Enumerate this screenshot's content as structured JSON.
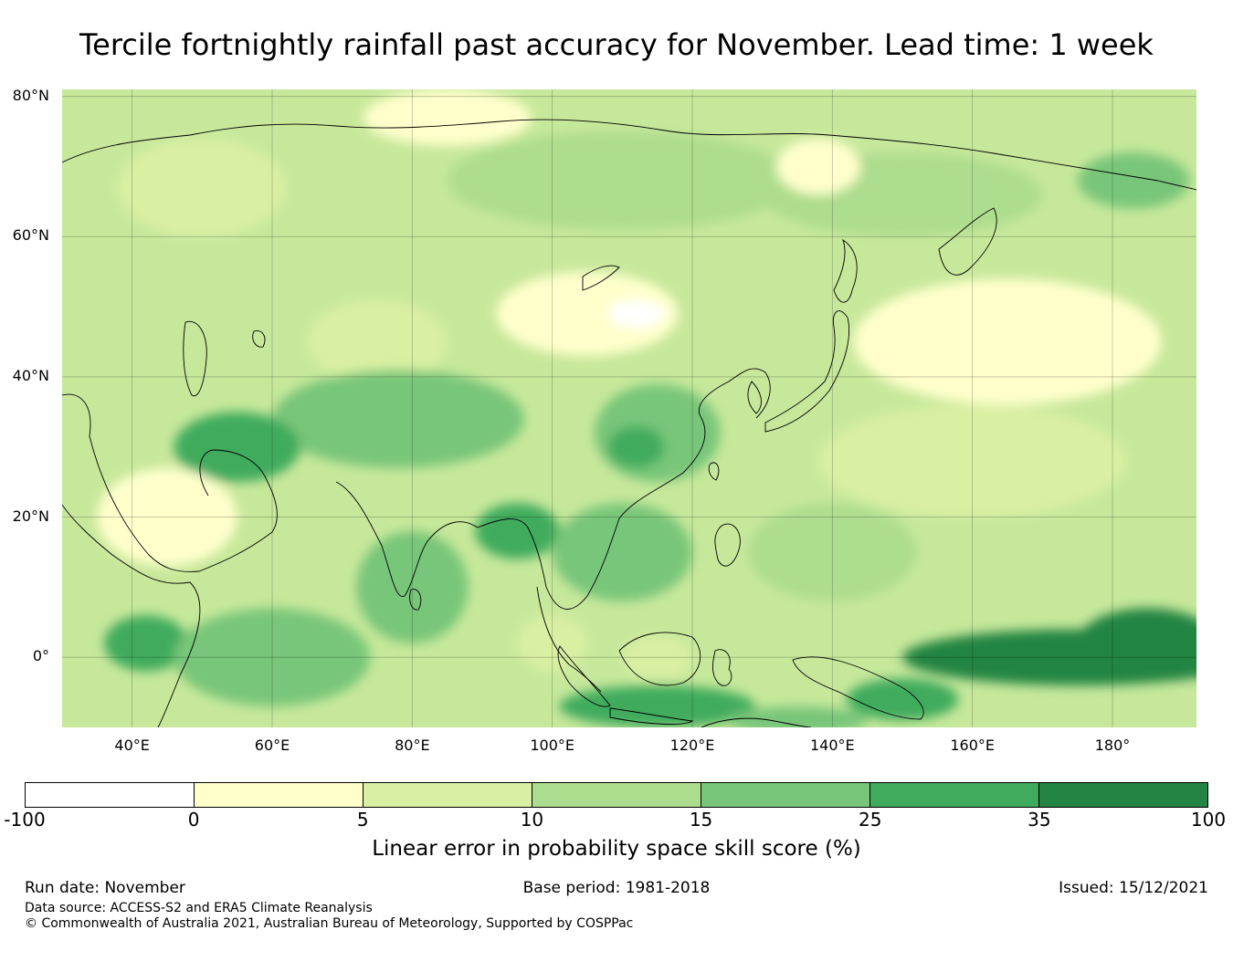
{
  "title": "Tercile fortnightly rainfall past accuracy for November. Lead time: 1 week",
  "map": {
    "lon_range": [
      30,
      192
    ],
    "lat_range": [
      -10,
      81
    ],
    "lat_ticks": [
      {
        "value": 80,
        "label": "80°N"
      },
      {
        "value": 60,
        "label": "60°N"
      },
      {
        "value": 40,
        "label": "40°N"
      },
      {
        "value": 20,
        "label": "20°N"
      },
      {
        "value": 0,
        "label": "0°"
      }
    ],
    "lon_ticks": [
      {
        "value": 40,
        "label": "40°E"
      },
      {
        "value": 60,
        "label": "60°E"
      },
      {
        "value": 80,
        "label": "80°E"
      },
      {
        "value": 100,
        "label": "100°E"
      },
      {
        "value": 120,
        "label": "120°E"
      },
      {
        "value": 140,
        "label": "140°E"
      },
      {
        "value": 160,
        "label": "160°E"
      },
      {
        "value": 180,
        "label": "180°"
      }
    ],
    "regions": [
      {
        "name": "arctic-fringe",
        "lon": 85,
        "lat": 77,
        "rx": 12,
        "ry": 4,
        "bin": 1
      },
      {
        "name": "scandinavia",
        "lon": 50,
        "lat": 67,
        "rx": 12,
        "ry": 7,
        "bin": 2
      },
      {
        "name": "siberia-north",
        "lon": 110,
        "lat": 68,
        "rx": 25,
        "ry": 7,
        "bin": 3
      },
      {
        "name": "siberia-east",
        "lon": 150,
        "lat": 66,
        "rx": 20,
        "ry": 6,
        "bin": 3
      },
      {
        "name": "kamchatka-sea",
        "lon": 183,
        "lat": 68,
        "rx": 8,
        "ry": 4,
        "bin": 4
      },
      {
        "name": "lena-basin",
        "lon": 138,
        "lat": 70,
        "rx": 6,
        "ry": 4,
        "bin": 1
      },
      {
        "name": "mongolia",
        "lon": 105,
        "lat": 49,
        "rx": 13,
        "ry": 6,
        "bin": 1
      },
      {
        "name": "mongolia-core",
        "lon": 112,
        "lat": 49,
        "rx": 4,
        "ry": 2,
        "bin": 0
      },
      {
        "name": "central-asia",
        "lon": 75,
        "lat": 45,
        "rx": 10,
        "ry": 6,
        "bin": 2
      },
      {
        "name": "tibet",
        "lon": 78,
        "lat": 34,
        "rx": 18,
        "ry": 7,
        "bin": 4
      },
      {
        "name": "iran",
        "lon": 55,
        "lat": 30,
        "rx": 9,
        "ry": 5,
        "bin": 5
      },
      {
        "name": "china-east",
        "lon": 115,
        "lat": 32,
        "rx": 9,
        "ry": 7,
        "bin": 4
      },
      {
        "name": "china-core",
        "lon": 112,
        "lat": 30,
        "rx": 4,
        "ry": 3,
        "bin": 5
      },
      {
        "name": "arabia",
        "lon": 45,
        "lat": 20,
        "rx": 10,
        "ry": 7,
        "bin": 1
      },
      {
        "name": "india-south",
        "lon": 80,
        "lat": 10,
        "rx": 8,
        "ry": 8,
        "bin": 4
      },
      {
        "name": "myanmar",
        "lon": 95,
        "lat": 18,
        "rx": 6,
        "ry": 4,
        "bin": 5
      },
      {
        "name": "south-china-sea",
        "lon": 110,
        "lat": 15,
        "rx": 10,
        "ry": 7,
        "bin": 4
      },
      {
        "name": "philippine-sea",
        "lon": 140,
        "lat": 15,
        "rx": 12,
        "ry": 7,
        "bin": 3
      },
      {
        "name": "north-pacific",
        "lon": 165,
        "lat": 45,
        "rx": 22,
        "ry": 9,
        "bin": 1
      },
      {
        "name": "pacific-mid",
        "lon": 160,
        "lat": 28,
        "rx": 22,
        "ry": 8,
        "bin": 2
      },
      {
        "name": "borneo",
        "lon": 115,
        "lat": 0,
        "rx": 5,
        "ry": 3,
        "bin": 2
      },
      {
        "name": "sumatra-sea",
        "lon": 100,
        "lat": 2,
        "rx": 5,
        "ry": 4,
        "bin": 2
      },
      {
        "name": "java-sea",
        "lon": 115,
        "lat": -7,
        "rx": 14,
        "ry": 3,
        "bin": 5
      },
      {
        "name": "horn-africa",
        "lon": 42,
        "lat": 2,
        "rx": 6,
        "ry": 4,
        "bin": 5
      },
      {
        "name": "west-indian-ocean",
        "lon": 60,
        "lat": 0,
        "rx": 14,
        "ry": 7,
        "bin": 4
      },
      {
        "name": "equatorial-pacific",
        "lon": 175,
        "lat": 0,
        "rx": 25,
        "ry": 4,
        "bin": 6
      },
      {
        "name": "equatorial-pacific-east",
        "lon": 185,
        "lat": 2,
        "rx": 10,
        "ry": 5,
        "bin": 6
      },
      {
        "name": "coral-sea-north",
        "lon": 150,
        "lat": -6,
        "rx": 8,
        "ry": 3,
        "bin": 5
      },
      {
        "name": "australia-north",
        "lon": 135,
        "lat": -9,
        "rx": 10,
        "ry": 2,
        "bin": 4
      }
    ]
  },
  "colorbar": {
    "bins": [
      {
        "from": -100,
        "to": 0,
        "color": "#ffffff"
      },
      {
        "from": 0,
        "to": 5,
        "color": "#ffffcc"
      },
      {
        "from": 5,
        "to": 10,
        "color": "#d9f0a3"
      },
      {
        "from": 10,
        "to": 15,
        "color": "#addd8e"
      },
      {
        "from": 15,
        "to": 25,
        "color": "#78c679"
      },
      {
        "from": 25,
        "to": 35,
        "color": "#41ab5d"
      },
      {
        "from": 35,
        "to": 100,
        "color": "#238443"
      }
    ],
    "ticks": [
      "-100",
      "0",
      "5",
      "10",
      "15",
      "25",
      "35",
      "100"
    ],
    "label": "Linear error in probability space skill score (%)"
  },
  "footer": {
    "run_date": "Run date: November",
    "base_period": "Base period: 1981-2018",
    "issued": "Issued: 15/12/2021",
    "data_source": "Data source: ACCESS-S2 and ERA5 Climate Reanalysis",
    "copyright": "© Commonwealth of Australia 2021, Australian Bureau of Meteorology, Supported by COSPPac"
  }
}
